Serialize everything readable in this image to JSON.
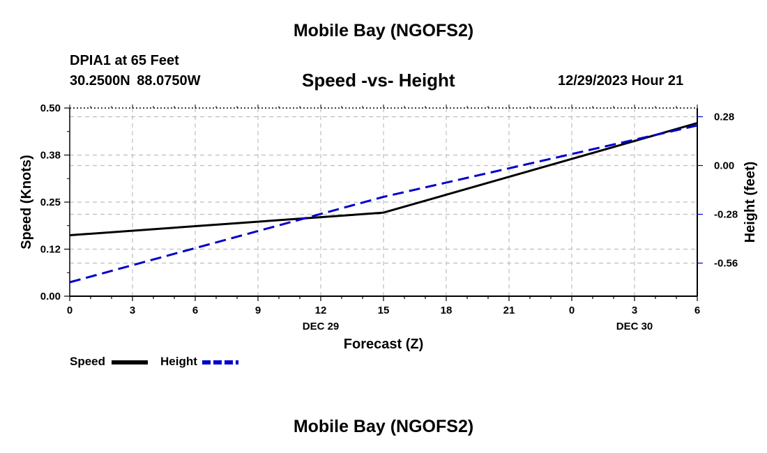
{
  "header": {
    "title": "Mobile Bay (NGOFS2)",
    "station": "DPIA1 at 65 Feet",
    "coords": "30.2500N  88.0750W",
    "subtitle": "Speed -vs- Height",
    "datetime": "12/29/2023 Hour 21"
  },
  "footer": {
    "title": "Mobile Bay (NGOFS2)"
  },
  "chart_data": {
    "type": "line",
    "title": "Speed -vs- Height",
    "xlabel": "Forecast (Z)",
    "ylabel": "Speed (Knots)",
    "y2label": "Height (feet)",
    "x": [
      0,
      3,
      6,
      9,
      12,
      15,
      18,
      21,
      24,
      27,
      30
    ],
    "xticklabels": [
      "0",
      "3",
      "6",
      "9",
      "12",
      "15",
      "18",
      "21",
      "0",
      "3",
      "6"
    ],
    "xlim": [
      0,
      30
    ],
    "date_labels": [
      {
        "x": 12,
        "label": "DEC 29"
      },
      {
        "x": 27,
        "label": "DEC 30"
      }
    ],
    "ylim": [
      0,
      0.5
    ],
    "yticks": [
      0,
      0.125,
      0.25,
      0.375,
      0.5
    ],
    "yticklabels": [
      "0.00",
      "0.12",
      "0.25",
      "0.38",
      "0.50"
    ],
    "y2lim": [
      -0.75,
      0.33
    ],
    "y2ticks": [
      -0.56,
      -0.28,
      0.0,
      0.28
    ],
    "y2ticklabels": [
      "-0.56",
      "-0.28",
      "0.00",
      "0.28"
    ],
    "grid": true,
    "series": [
      {
        "name": "Speed",
        "axis": "left",
        "color": "#000000",
        "style": "solid",
        "x": [
          0,
          15,
          30
        ],
        "values": [
          0.162,
          0.222,
          0.46
        ]
      },
      {
        "name": "Height",
        "axis": "right",
        "color": "#0000cc",
        "style": "dashed",
        "x": [
          0,
          15,
          30
        ],
        "values": [
          -0.67,
          -0.18,
          0.23
        ]
      }
    ],
    "legend": [
      {
        "label": "Speed",
        "color": "#000000",
        "style": "solid"
      },
      {
        "label": "Height",
        "color": "#0000cc",
        "style": "dashed"
      }
    ]
  }
}
